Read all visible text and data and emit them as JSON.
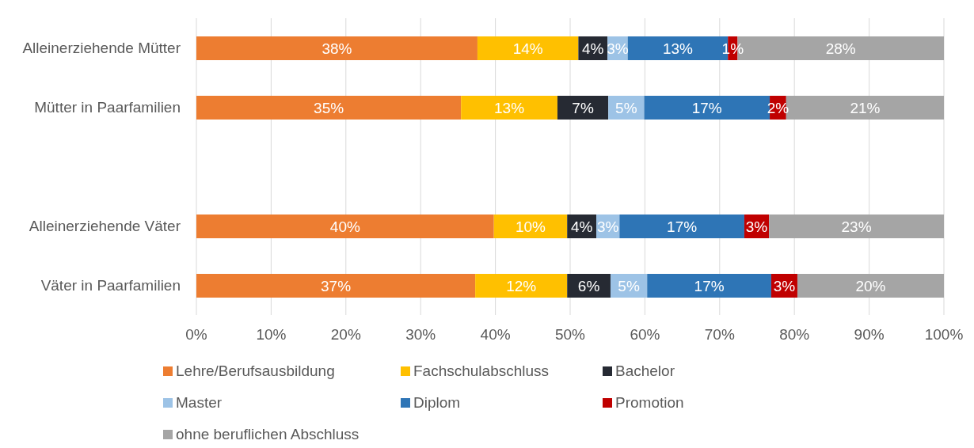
{
  "chart_data": {
    "type": "bar",
    "orientation": "horizontal",
    "stacked": true,
    "categories": [
      "Alleinerziehende Mütter",
      "Mütter in Paarfamilien",
      null,
      "Alleinerziehende Väter",
      "Väter in Paarfamilien"
    ],
    "series": [
      {
        "name": "Lehre/Berufsausbildung",
        "color": "#ed7d31",
        "values": [
          37.6,
          35.4,
          null,
          39.8,
          37.3
        ],
        "value_labels": [
          "38%",
          "35%",
          null,
          "40%",
          "37%"
        ]
      },
      {
        "name": "Fachschulabschluss",
        "color": "#ffc000",
        "values": [
          13.5,
          12.9,
          null,
          9.8,
          12.3
        ],
        "value_labels": [
          "14%",
          "13%",
          null,
          "10%",
          "12%"
        ]
      },
      {
        "name": "Bachelor",
        "color": "#262a33",
        "values": [
          3.9,
          6.8,
          null,
          3.9,
          5.8
        ],
        "value_labels": [
          "4%",
          "7%",
          null,
          "4%",
          "6%"
        ]
      },
      {
        "name": "Master",
        "color": "#9dc3e6",
        "values": [
          2.7,
          4.8,
          null,
          3.1,
          4.9
        ],
        "value_labels": [
          "3%",
          "5%",
          null,
          "3%",
          "5%"
        ]
      },
      {
        "name": "Diplom",
        "color": "#2e75b6",
        "values": [
          13.4,
          16.8,
          null,
          16.7,
          16.6
        ],
        "value_labels": [
          "13%",
          "17%",
          null,
          "17%",
          "17%"
        ]
      },
      {
        "name": "Promotion",
        "color": "#c00000",
        "values": [
          1.3,
          2.2,
          null,
          3.3,
          3.5
        ],
        "value_labels": [
          "1%",
          "2%",
          null,
          "3%",
          "3%"
        ]
      },
      {
        "name": "ohne beruflichen Abschluss",
        "color": "#a5a5a5",
        "values": [
          27.6,
          21.1,
          null,
          23.4,
          19.6
        ],
        "value_labels": [
          "28%",
          "21%",
          null,
          "23%",
          "20%"
        ]
      }
    ],
    "xlim": [
      0,
      100
    ],
    "xticks": [
      {
        "value": 0,
        "label": "0%"
      },
      {
        "value": 10,
        "label": "10%"
      },
      {
        "value": 20,
        "label": "20%"
      },
      {
        "value": 30,
        "label": "30%"
      },
      {
        "value": 40,
        "label": "40%"
      },
      {
        "value": 50,
        "label": "50%"
      },
      {
        "value": 60,
        "label": "60%"
      },
      {
        "value": 70,
        "label": "70%"
      },
      {
        "value": 80,
        "label": "80%"
      },
      {
        "value": 90,
        "label": "90%"
      },
      {
        "value": 100,
        "label": "100%"
      }
    ],
    "grid": "x",
    "legend": "bottom"
  }
}
